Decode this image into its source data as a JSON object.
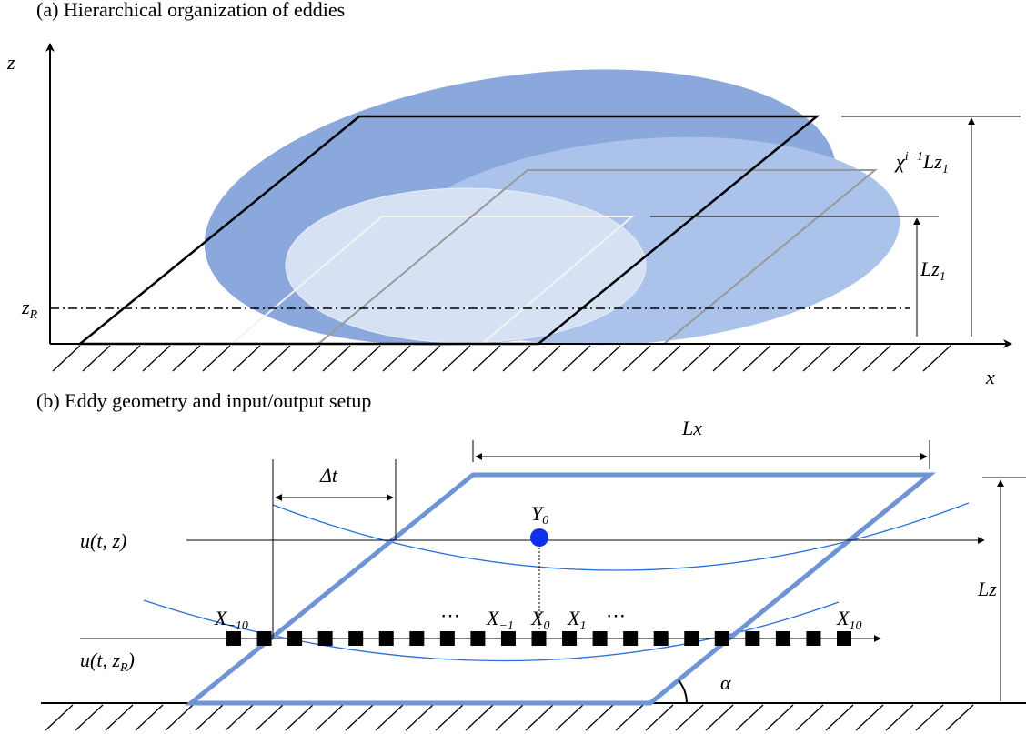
{
  "panel_a": {
    "title": "(a) Hierarchical organization of eddies",
    "axis_z": "z",
    "axis_x": "x",
    "z_r": {
      "base": "z",
      "sub": "R"
    },
    "outer_height": {
      "base": "χ",
      "sup": "i−1",
      "rest": "Lz",
      "sub": "1"
    },
    "inner_height": {
      "base": "Lz",
      "sub": "1"
    }
  },
  "panel_b": {
    "title": "(b) Eddy geometry and input/output setup",
    "delta_t": "Δt",
    "lx": "Lx",
    "lz": "Lz",
    "angle": "α",
    "output": {
      "base": "Y",
      "sub": "0"
    },
    "u_top": "u(t, z)",
    "u_bottom": {
      "base": "u(t, z",
      "sub": "R",
      "rest": ")"
    },
    "inputs": [
      {
        "base": "X",
        "sub": "−10"
      },
      {
        "base": "X",
        "sub": "−1"
      },
      {
        "base": "X",
        "sub": "0"
      },
      {
        "base": "X",
        "sub": "1"
      },
      {
        "base": "X",
        "sub": "10"
      }
    ],
    "ellipsis": [
      "⋯",
      "⋯"
    ]
  }
}
